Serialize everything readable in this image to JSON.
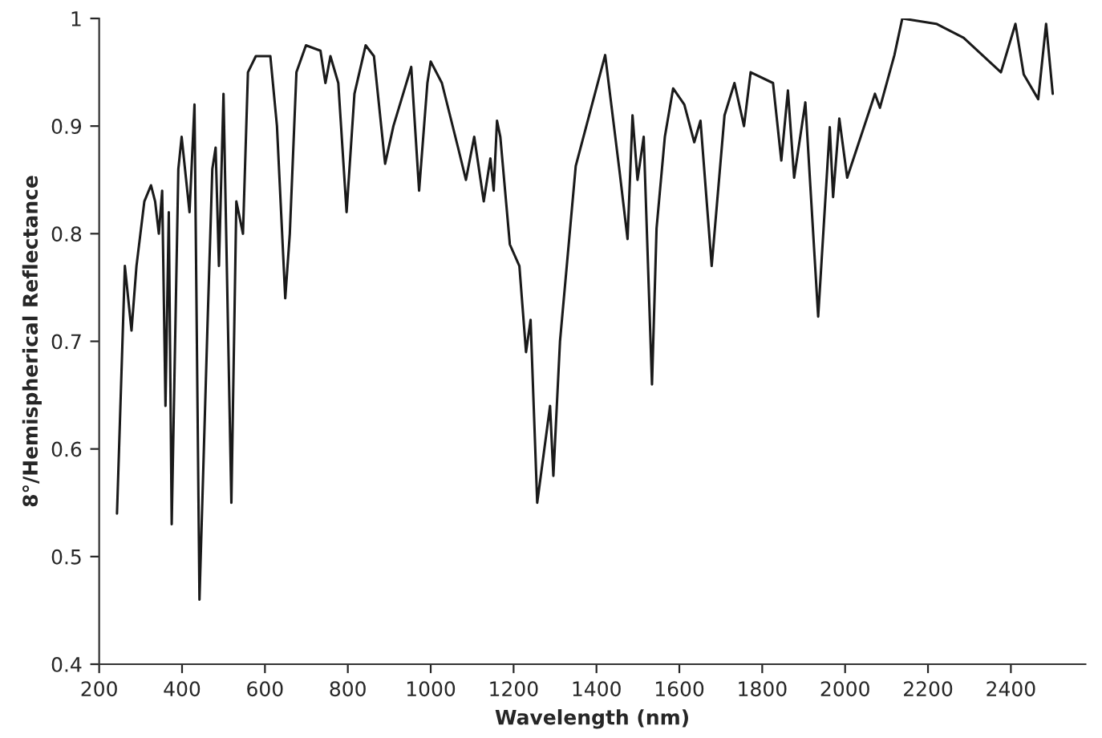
{
  "chart_data": {
    "type": "line",
    "xlabel": "Wavelength (nm)",
    "ylabel": "8°/Hemispherical Reflectance",
    "xlim": [
      200,
      2580
    ],
    "ylim": [
      0.4,
      1
    ],
    "xticks": [
      200,
      400,
      600,
      800,
      1000,
      1200,
      1400,
      1600,
      1800,
      2000,
      2200,
      2400
    ],
    "yticks": [
      0.4,
      0.5,
      0.6,
      0.7,
      0.8,
      0.9,
      1
    ],
    "grid": false,
    "legend": false,
    "marker": "none",
    "line_style": "solid",
    "series": [
      {
        "color": "#1a1a1a",
        "x": [
          243,
          262,
          278,
          290,
          309,
          325,
          335,
          344,
          352,
          360,
          368,
          375,
          391,
          399,
          418,
          430,
          442,
          461,
          473,
          481,
          489,
          500,
          519,
          531,
          547,
          559,
          578,
          613,
          629,
          649,
          660,
          676,
          699,
          734,
          746,
          758,
          777,
          797,
          816,
          843,
          863,
          890,
          910,
          953,
          972,
          992,
          1000,
          1027,
          1066,
          1085,
          1105,
          1128,
          1144,
          1152,
          1160,
          1168,
          1191,
          1214,
          1230,
          1241,
          1257,
          1288,
          1296,
          1312,
          1350,
          1421,
          1456,
          1475,
          1487,
          1499,
          1514,
          1534,
          1545,
          1565,
          1585,
          1612,
          1636,
          1651,
          1678,
          1709,
          1733,
          1756,
          1772,
          1826,
          1846,
          1862,
          1877,
          1904,
          1935,
          1963,
          1971,
          1986,
          2005,
          2072,
          2084,
          2119,
          2138,
          2220,
          2286,
          2376,
          2411,
          2431,
          2466,
          2485,
          2501
        ],
        "values": [
          0.54,
          0.77,
          0.71,
          0.77,
          0.83,
          0.845,
          0.83,
          0.8,
          0.84,
          0.64,
          0.82,
          0.53,
          0.86,
          0.89,
          0.82,
          0.92,
          0.46,
          0.71,
          0.86,
          0.88,
          0.77,
          0.93,
          0.55,
          0.83,
          0.8,
          0.95,
          0.965,
          0.965,
          0.9,
          0.74,
          0.8,
          0.95,
          0.975,
          0.97,
          0.94,
          0.965,
          0.94,
          0.82,
          0.93,
          0.975,
          0.965,
          0.865,
          0.9,
          0.955,
          0.84,
          0.94,
          0.96,
          0.94,
          0.88,
          0.85,
          0.89,
          0.83,
          0.87,
          0.84,
          0.905,
          0.89,
          0.79,
          0.77,
          0.69,
          0.72,
          0.55,
          0.64,
          0.575,
          0.7,
          0.863,
          0.966,
          0.857,
          0.795,
          0.91,
          0.85,
          0.89,
          0.66,
          0.805,
          0.89,
          0.935,
          0.92,
          0.885,
          0.905,
          0.77,
          0.91,
          0.94,
          0.9,
          0.95,
          0.94,
          0.868,
          0.933,
          0.852,
          0.922,
          0.723,
          0.899,
          0.834,
          0.907,
          0.852,
          0.93,
          0.917,
          0.966,
          1.0,
          0.995,
          0.982,
          0.95,
          0.995,
          0.948,
          0.925,
          0.995,
          0.93
        ]
      }
    ]
  }
}
